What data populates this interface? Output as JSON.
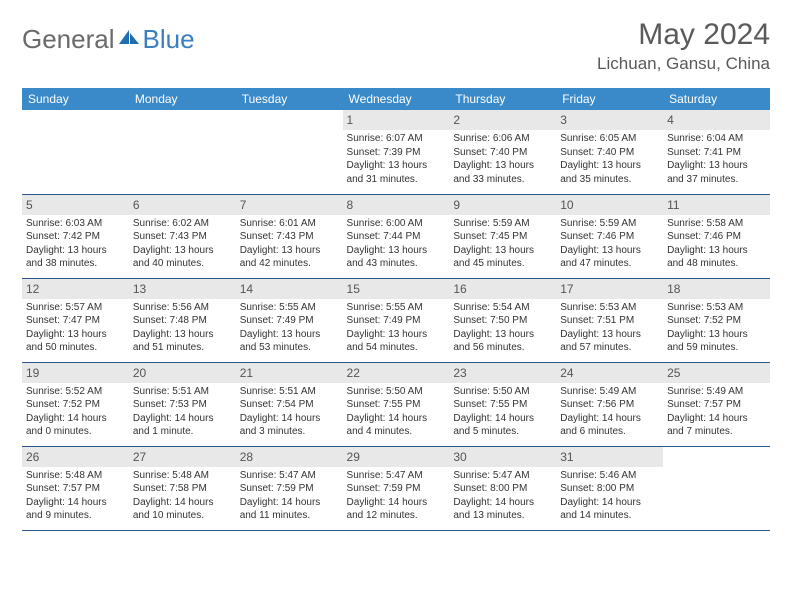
{
  "logo": {
    "general": "General",
    "blue": "Blue"
  },
  "header": {
    "title": "May 2024",
    "location": "Lichuan, Gansu, China"
  },
  "colors": {
    "header_bg": "#3a89c9",
    "header_text": "#ffffff",
    "border": "#2b5a8a",
    "daynum_bg": "#e8e8e8",
    "text": "#333333",
    "logo_gray": "#6a6a6a",
    "logo_blue": "#3a7fc0"
  },
  "weekdays": [
    "Sunday",
    "Monday",
    "Tuesday",
    "Wednesday",
    "Thursday",
    "Friday",
    "Saturday"
  ],
  "weeks": [
    [
      null,
      null,
      null,
      {
        "n": "1",
        "sr": "Sunrise: 6:07 AM",
        "ss": "Sunset: 7:39 PM",
        "dl": "Daylight: 13 hours and 31 minutes."
      },
      {
        "n": "2",
        "sr": "Sunrise: 6:06 AM",
        "ss": "Sunset: 7:40 PM",
        "dl": "Daylight: 13 hours and 33 minutes."
      },
      {
        "n": "3",
        "sr": "Sunrise: 6:05 AM",
        "ss": "Sunset: 7:40 PM",
        "dl": "Daylight: 13 hours and 35 minutes."
      },
      {
        "n": "4",
        "sr": "Sunrise: 6:04 AM",
        "ss": "Sunset: 7:41 PM",
        "dl": "Daylight: 13 hours and 37 minutes."
      }
    ],
    [
      {
        "n": "5",
        "sr": "Sunrise: 6:03 AM",
        "ss": "Sunset: 7:42 PM",
        "dl": "Daylight: 13 hours and 38 minutes."
      },
      {
        "n": "6",
        "sr": "Sunrise: 6:02 AM",
        "ss": "Sunset: 7:43 PM",
        "dl": "Daylight: 13 hours and 40 minutes."
      },
      {
        "n": "7",
        "sr": "Sunrise: 6:01 AM",
        "ss": "Sunset: 7:43 PM",
        "dl": "Daylight: 13 hours and 42 minutes."
      },
      {
        "n": "8",
        "sr": "Sunrise: 6:00 AM",
        "ss": "Sunset: 7:44 PM",
        "dl": "Daylight: 13 hours and 43 minutes."
      },
      {
        "n": "9",
        "sr": "Sunrise: 5:59 AM",
        "ss": "Sunset: 7:45 PM",
        "dl": "Daylight: 13 hours and 45 minutes."
      },
      {
        "n": "10",
        "sr": "Sunrise: 5:59 AM",
        "ss": "Sunset: 7:46 PM",
        "dl": "Daylight: 13 hours and 47 minutes."
      },
      {
        "n": "11",
        "sr": "Sunrise: 5:58 AM",
        "ss": "Sunset: 7:46 PM",
        "dl": "Daylight: 13 hours and 48 minutes."
      }
    ],
    [
      {
        "n": "12",
        "sr": "Sunrise: 5:57 AM",
        "ss": "Sunset: 7:47 PM",
        "dl": "Daylight: 13 hours and 50 minutes."
      },
      {
        "n": "13",
        "sr": "Sunrise: 5:56 AM",
        "ss": "Sunset: 7:48 PM",
        "dl": "Daylight: 13 hours and 51 minutes."
      },
      {
        "n": "14",
        "sr": "Sunrise: 5:55 AM",
        "ss": "Sunset: 7:49 PM",
        "dl": "Daylight: 13 hours and 53 minutes."
      },
      {
        "n": "15",
        "sr": "Sunrise: 5:55 AM",
        "ss": "Sunset: 7:49 PM",
        "dl": "Daylight: 13 hours and 54 minutes."
      },
      {
        "n": "16",
        "sr": "Sunrise: 5:54 AM",
        "ss": "Sunset: 7:50 PM",
        "dl": "Daylight: 13 hours and 56 minutes."
      },
      {
        "n": "17",
        "sr": "Sunrise: 5:53 AM",
        "ss": "Sunset: 7:51 PM",
        "dl": "Daylight: 13 hours and 57 minutes."
      },
      {
        "n": "18",
        "sr": "Sunrise: 5:53 AM",
        "ss": "Sunset: 7:52 PM",
        "dl": "Daylight: 13 hours and 59 minutes."
      }
    ],
    [
      {
        "n": "19",
        "sr": "Sunrise: 5:52 AM",
        "ss": "Sunset: 7:52 PM",
        "dl": "Daylight: 14 hours and 0 minutes."
      },
      {
        "n": "20",
        "sr": "Sunrise: 5:51 AM",
        "ss": "Sunset: 7:53 PM",
        "dl": "Daylight: 14 hours and 1 minute."
      },
      {
        "n": "21",
        "sr": "Sunrise: 5:51 AM",
        "ss": "Sunset: 7:54 PM",
        "dl": "Daylight: 14 hours and 3 minutes."
      },
      {
        "n": "22",
        "sr": "Sunrise: 5:50 AM",
        "ss": "Sunset: 7:55 PM",
        "dl": "Daylight: 14 hours and 4 minutes."
      },
      {
        "n": "23",
        "sr": "Sunrise: 5:50 AM",
        "ss": "Sunset: 7:55 PM",
        "dl": "Daylight: 14 hours and 5 minutes."
      },
      {
        "n": "24",
        "sr": "Sunrise: 5:49 AM",
        "ss": "Sunset: 7:56 PM",
        "dl": "Daylight: 14 hours and 6 minutes."
      },
      {
        "n": "25",
        "sr": "Sunrise: 5:49 AM",
        "ss": "Sunset: 7:57 PM",
        "dl": "Daylight: 14 hours and 7 minutes."
      }
    ],
    [
      {
        "n": "26",
        "sr": "Sunrise: 5:48 AM",
        "ss": "Sunset: 7:57 PM",
        "dl": "Daylight: 14 hours and 9 minutes."
      },
      {
        "n": "27",
        "sr": "Sunrise: 5:48 AM",
        "ss": "Sunset: 7:58 PM",
        "dl": "Daylight: 14 hours and 10 minutes."
      },
      {
        "n": "28",
        "sr": "Sunrise: 5:47 AM",
        "ss": "Sunset: 7:59 PM",
        "dl": "Daylight: 14 hours and 11 minutes."
      },
      {
        "n": "29",
        "sr": "Sunrise: 5:47 AM",
        "ss": "Sunset: 7:59 PM",
        "dl": "Daylight: 14 hours and 12 minutes."
      },
      {
        "n": "30",
        "sr": "Sunrise: 5:47 AM",
        "ss": "Sunset: 8:00 PM",
        "dl": "Daylight: 14 hours and 13 minutes."
      },
      {
        "n": "31",
        "sr": "Sunrise: 5:46 AM",
        "ss": "Sunset: 8:00 PM",
        "dl": "Daylight: 14 hours and 14 minutes."
      },
      null
    ]
  ]
}
